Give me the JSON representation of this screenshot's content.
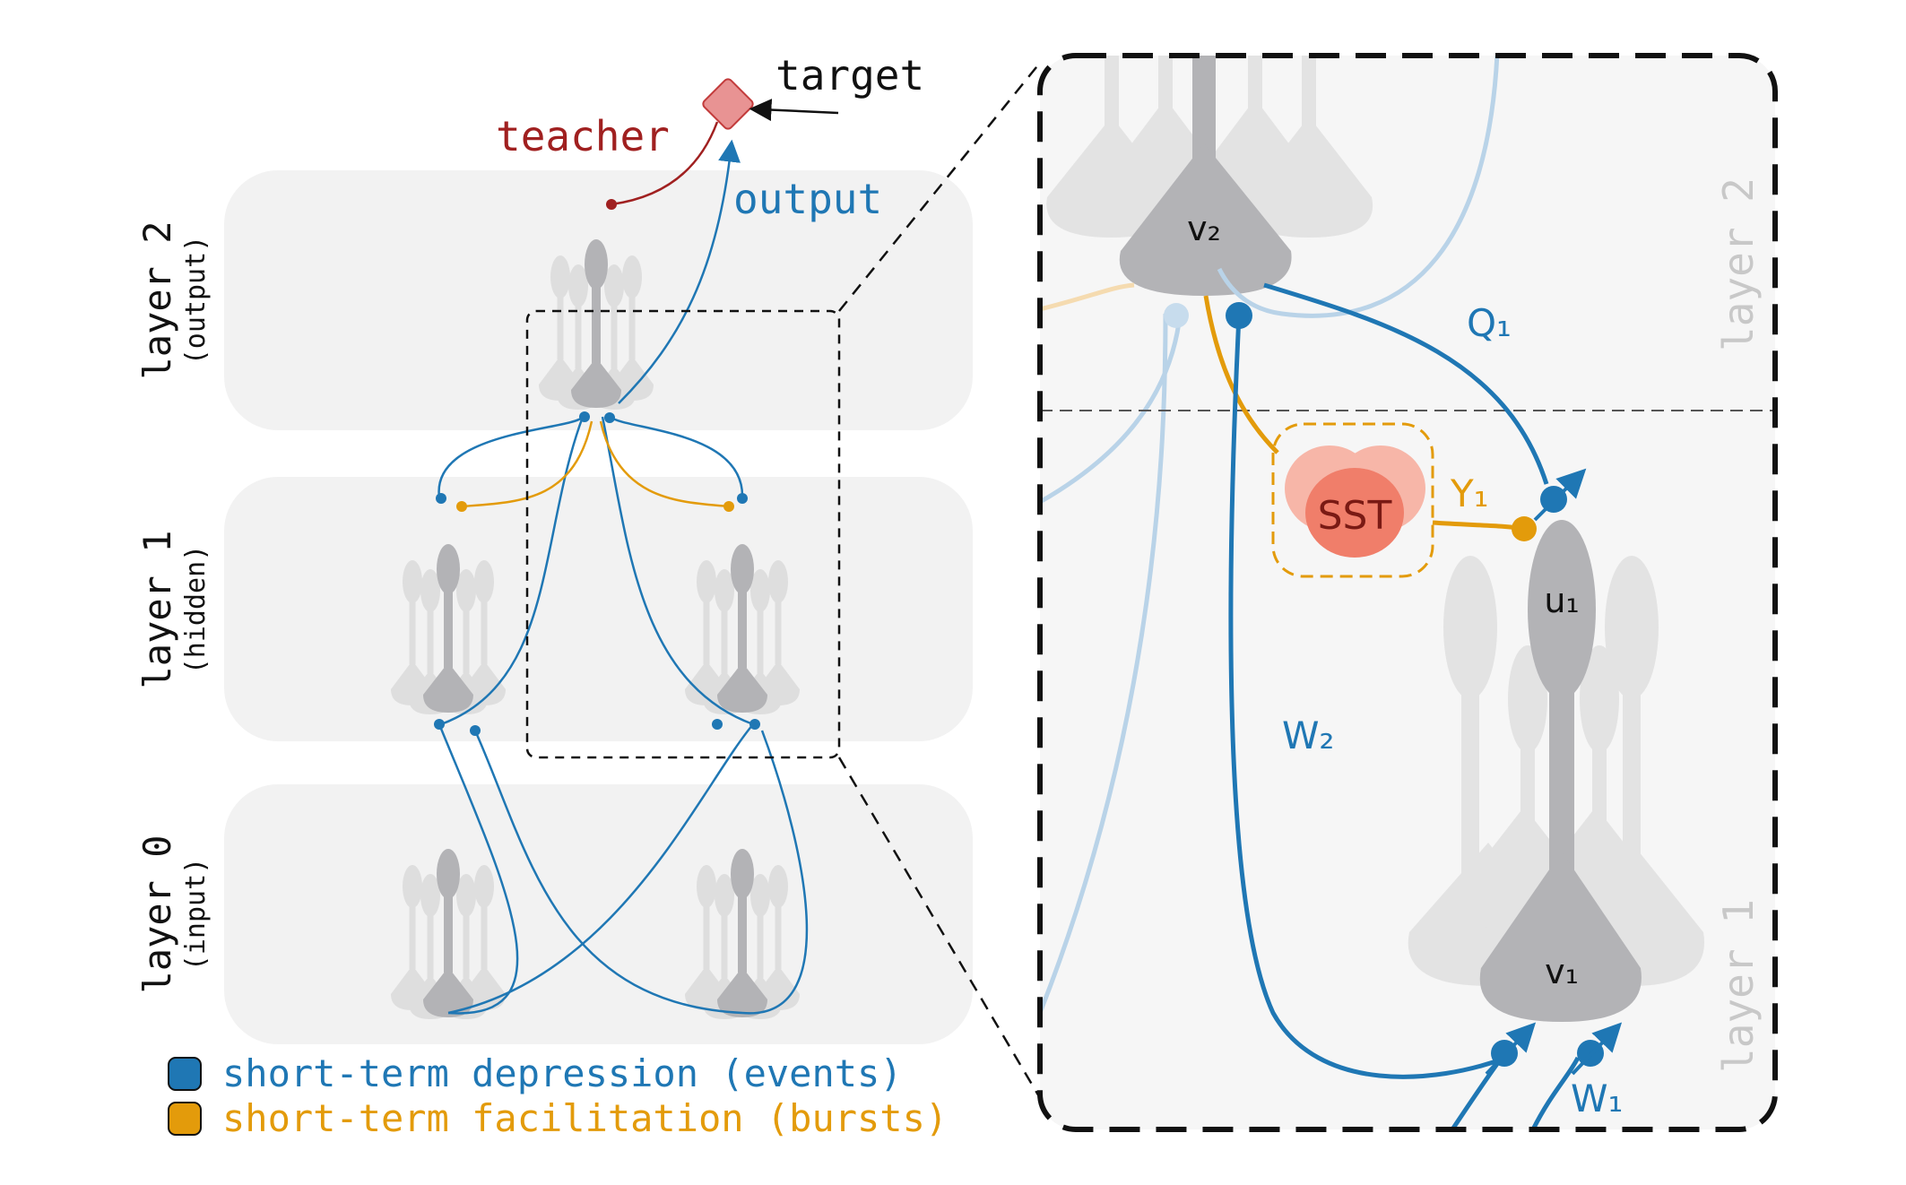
{
  "left_panel": {
    "layers": [
      {
        "title": "layer 2",
        "subtitle": "(output)"
      },
      {
        "title": "layer 1",
        "subtitle": "(hidden)"
      },
      {
        "title": "layer 0",
        "subtitle": "(input)"
      }
    ],
    "labels": {
      "target": "target",
      "teacher": "teacher",
      "output": "output"
    }
  },
  "legend": {
    "items": [
      {
        "label": "short-term depression (events)",
        "color": "#1f77b4"
      },
      {
        "label": "short-term facilitation (bursts)",
        "color": "#e39b0b"
      }
    ]
  },
  "zoom_panel": {
    "layer_labels": {
      "top": "layer 2",
      "bottom": "layer 1"
    },
    "neurons": {
      "v2": "v₂",
      "u1": "u₁",
      "v1": "v₁"
    },
    "synapses": {
      "q1": "Q₁",
      "y1": "Y₁",
      "w2": "W₂",
      "w1": "W₁"
    },
    "interneuron": "SST"
  },
  "colors": {
    "blue": "#1f77b4",
    "orange": "#e39b0b",
    "teacher_red": "#a02020",
    "light_blue": "#b9d3e8",
    "neuron_dark": "#b3b3b6",
    "neuron_light": "#dcdcdc",
    "layer_bg": "#f0f0f0",
    "target_pink": "#e89393",
    "sst_red": "#f07e6a"
  }
}
